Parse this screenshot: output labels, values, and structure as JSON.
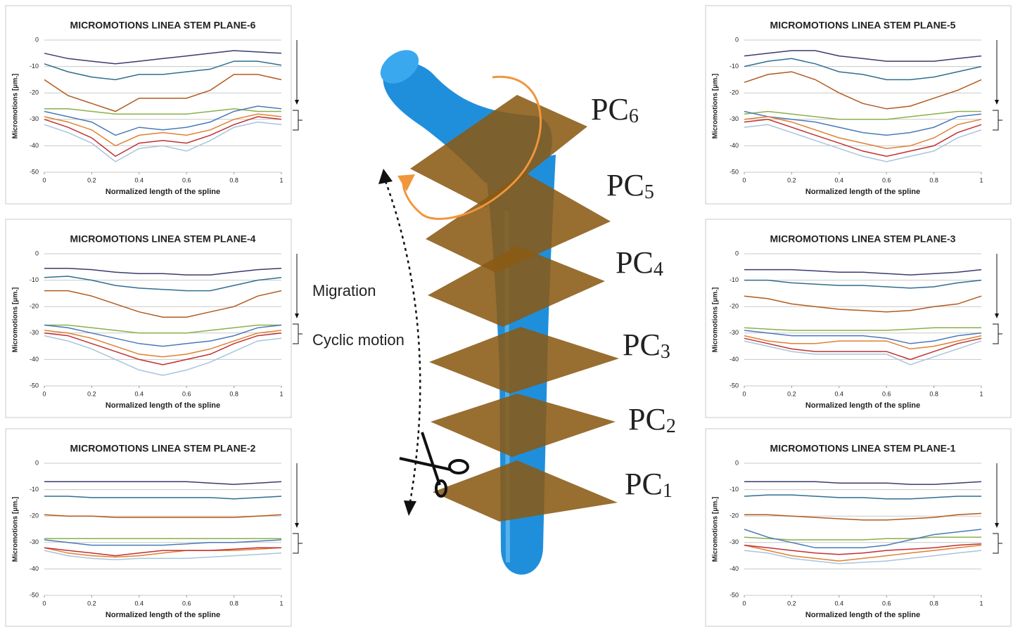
{
  "chart_data": [
    {
      "type": "line",
      "title": "MICROMOTIONS LINEA STEM PLANE-6",
      "x_label": "Normalized length of the spline",
      "y_label": "Micromotions [μm.]",
      "xlim": [
        0,
        1
      ],
      "ylim": [
        -50,
        0
      ],
      "xticks": [
        0,
        0.2,
        0.4,
        0.6,
        0.8,
        1
      ],
      "yticks": [
        -50,
        -40,
        -30,
        -20,
        -10,
        0
      ],
      "grid": true,
      "x": [
        0,
        0.1,
        0.2,
        0.3,
        0.4,
        0.5,
        0.6,
        0.7,
        0.8,
        0.9,
        1
      ],
      "series": [
        {
          "color": "#3b3b6b",
          "values": [
            -5,
            -7,
            -8,
            -9,
            -8,
            -7,
            -6,
            -5,
            -4,
            -4.5,
            -5
          ]
        },
        {
          "color": "#2e6e8e",
          "values": [
            -9,
            -12,
            -14,
            -15,
            -13,
            -13,
            -12,
            -11,
            -8,
            -8,
            -9.5
          ]
        },
        {
          "color": "#b05a1e",
          "values": [
            -15,
            -21,
            -24,
            -27,
            -22,
            -22,
            -22,
            -19,
            -13,
            -13,
            -15
          ]
        },
        {
          "color": "#8ab04a",
          "values": [
            -26,
            -26,
            -27,
            -28,
            -28,
            -28,
            -28,
            -27,
            -26,
            -27,
            -27
          ]
        },
        {
          "color": "#4a7ab8",
          "values": [
            -27,
            -29,
            -31,
            -36,
            -33,
            -34,
            -33,
            -31,
            -27,
            -25,
            -26
          ]
        },
        {
          "color": "#e08030",
          "values": [
            -29,
            -31,
            -34,
            -40,
            -36,
            -35,
            -36,
            -34,
            -30,
            -28,
            -29
          ]
        },
        {
          "color": "#c03030",
          "values": [
            -30,
            -33,
            -37,
            -44,
            -39,
            -38,
            -39,
            -36,
            -32,
            -29,
            -30
          ]
        },
        {
          "color": "#a8c4dc",
          "values": [
            -32,
            -35,
            -39,
            -46,
            -41,
            -40,
            -42,
            -38,
            -33,
            -31,
            -32
          ]
        }
      ]
    },
    {
      "type": "line",
      "title": "MICROMOTIONS LINEA STEM PLANE-5",
      "x_label": "Normalized length of the spline",
      "y_label": "Micromotions [μm.]",
      "xlim": [
        0,
        1
      ],
      "ylim": [
        -50,
        0
      ],
      "xticks": [
        0,
        0.2,
        0.4,
        0.6,
        0.8,
        1
      ],
      "yticks": [
        -50,
        -40,
        -30,
        -20,
        -10,
        0
      ],
      "grid": true,
      "x": [
        0,
        0.1,
        0.2,
        0.3,
        0.4,
        0.5,
        0.6,
        0.7,
        0.8,
        0.9,
        1
      ],
      "series": [
        {
          "color": "#3b3b6b",
          "values": [
            -6,
            -5,
            -4,
            -4,
            -6,
            -7,
            -8,
            -8,
            -8,
            -7,
            -6
          ]
        },
        {
          "color": "#2e6e8e",
          "values": [
            -10,
            -8,
            -7,
            -9,
            -12,
            -13,
            -15,
            -15,
            -14,
            -12,
            -10
          ]
        },
        {
          "color": "#b05a1e",
          "values": [
            -16,
            -13,
            -12,
            -15,
            -20,
            -24,
            -26,
            -25,
            -22,
            -19,
            -15
          ]
        },
        {
          "color": "#8ab04a",
          "values": [
            -28,
            -27,
            -28,
            -29,
            -30,
            -30,
            -30,
            -29,
            -28,
            -27,
            -27
          ]
        },
        {
          "color": "#4a7ab8",
          "values": [
            -27,
            -29,
            -30,
            -31,
            -33,
            -35,
            -36,
            -35,
            -33,
            -29,
            -28
          ]
        },
        {
          "color": "#e08030",
          "values": [
            -30,
            -29,
            -31,
            -34,
            -37,
            -39,
            -41,
            -40,
            -37,
            -32,
            -30
          ]
        },
        {
          "color": "#c03030",
          "values": [
            -31,
            -30,
            -33,
            -36,
            -39,
            -42,
            -44,
            -42,
            -40,
            -35,
            -32
          ]
        },
        {
          "color": "#a8c4dc",
          "values": [
            -33,
            -32,
            -35,
            -38,
            -41,
            -44,
            -46,
            -44,
            -42,
            -37,
            -34
          ]
        }
      ]
    },
    {
      "type": "line",
      "title": "MICROMOTIONS LINEA STEM PLANE-4",
      "x_label": "Normalized length of the spline",
      "y_label": "Micromotions [μm.]",
      "xlim": [
        0,
        1
      ],
      "ylim": [
        -50,
        0
      ],
      "xticks": [
        0,
        0.2,
        0.4,
        0.6,
        0.8,
        1
      ],
      "yticks": [
        -50,
        -40,
        -30,
        -20,
        -10,
        0
      ],
      "grid": true,
      "x": [
        0,
        0.1,
        0.2,
        0.3,
        0.4,
        0.5,
        0.6,
        0.7,
        0.8,
        0.9,
        1
      ],
      "series": [
        {
          "color": "#3b3b6b",
          "values": [
            -5.5,
            -5.5,
            -6,
            -7,
            -7.5,
            -7.5,
            -8,
            -8,
            -7,
            -6,
            -5.5
          ]
        },
        {
          "color": "#2e6e8e",
          "values": [
            -9,
            -8.5,
            -10,
            -12,
            -13,
            -13.5,
            -14,
            -14,
            -12,
            -10,
            -9
          ]
        },
        {
          "color": "#b05a1e",
          "values": [
            -14,
            -14,
            -16,
            -19,
            -22,
            -24,
            -24,
            -22,
            -20,
            -16,
            -14
          ]
        },
        {
          "color": "#8ab04a",
          "values": [
            -27,
            -27,
            -28,
            -29,
            -30,
            -30,
            -30,
            -29,
            -28,
            -27,
            -27
          ]
        },
        {
          "color": "#4a7ab8",
          "values": [
            -27,
            -28,
            -30,
            -32,
            -34,
            -35,
            -34,
            -33,
            -31,
            -28,
            -27
          ]
        },
        {
          "color": "#e08030",
          "values": [
            -29,
            -30,
            -32,
            -35,
            -38,
            -39,
            -38,
            -36,
            -33,
            -30,
            -29
          ]
        },
        {
          "color": "#c03030",
          "values": [
            -30,
            -31,
            -34,
            -37,
            -40,
            -42,
            -40,
            -38,
            -34,
            -31,
            -30
          ]
        },
        {
          "color": "#a8c4dc",
          "values": [
            -31,
            -33,
            -36,
            -40,
            -44,
            -46,
            -44,
            -41,
            -37,
            -33,
            -32
          ]
        }
      ]
    },
    {
      "type": "line",
      "title": "MICROMOTIONS LINEA STEM PLANE-3",
      "x_label": "Normalized length of the spline",
      "y_label": "Micromotions [μm.]",
      "xlim": [
        0,
        1
      ],
      "ylim": [
        -50,
        0
      ],
      "xticks": [
        0,
        0.2,
        0.4,
        0.6,
        0.8,
        1
      ],
      "yticks": [
        -50,
        -40,
        -30,
        -20,
        -10,
        0
      ],
      "grid": true,
      "x": [
        0,
        0.1,
        0.2,
        0.3,
        0.4,
        0.5,
        0.6,
        0.7,
        0.8,
        0.9,
        1
      ],
      "series": [
        {
          "color": "#3b3b6b",
          "values": [
            -6,
            -6,
            -6,
            -6.5,
            -7,
            -7,
            -7.5,
            -8,
            -7.5,
            -7,
            -6
          ]
        },
        {
          "color": "#2e6e8e",
          "values": [
            -10,
            -10,
            -11,
            -11.5,
            -12,
            -12,
            -12.5,
            -13,
            -12.5,
            -11,
            -10
          ]
        },
        {
          "color": "#b05a1e",
          "values": [
            -16,
            -17,
            -19,
            -20,
            -21,
            -21.5,
            -22,
            -21.5,
            -20,
            -19,
            -16
          ]
        },
        {
          "color": "#8ab04a",
          "values": [
            -28,
            -28.5,
            -29,
            -29,
            -29,
            -29,
            -29,
            -28.5,
            -28,
            -28,
            -28
          ]
        },
        {
          "color": "#4a7ab8",
          "values": [
            -29,
            -30,
            -31,
            -31,
            -31,
            -31,
            -32,
            -34,
            -33,
            -31,
            -30
          ]
        },
        {
          "color": "#e08030",
          "values": [
            -31,
            -33,
            -34,
            -34,
            -33,
            -33,
            -33,
            -36,
            -35,
            -33,
            -31
          ]
        },
        {
          "color": "#c03030",
          "values": [
            -32,
            -34,
            -36,
            -37,
            -37,
            -37,
            -37,
            -40,
            -37,
            -34,
            -32
          ]
        },
        {
          "color": "#a8c4dc",
          "values": [
            -33,
            -35,
            -37,
            -38,
            -38,
            -38,
            -38,
            -42,
            -39,
            -36,
            -33
          ]
        }
      ]
    },
    {
      "type": "line",
      "title": "MICROMOTIONS LINEA STEM PLANE-2",
      "x_label": "Normalized length of the spline",
      "y_label": "Micromotions [μm.]",
      "xlim": [
        0,
        1
      ],
      "ylim": [
        -50,
        0
      ],
      "xticks": [
        0,
        0.2,
        0.4,
        0.6,
        0.8,
        1
      ],
      "yticks": [
        -50,
        -40,
        -30,
        -20,
        -10,
        0
      ],
      "grid": true,
      "x": [
        0,
        0.1,
        0.2,
        0.3,
        0.4,
        0.5,
        0.6,
        0.7,
        0.8,
        0.9,
        1
      ],
      "series": [
        {
          "color": "#3b3b6b",
          "values": [
            -7,
            -7,
            -7,
            -7,
            -7,
            -7,
            -7,
            -7.5,
            -8,
            -7.5,
            -7
          ]
        },
        {
          "color": "#2e6e8e",
          "values": [
            -12.5,
            -12.5,
            -13,
            -13,
            -13,
            -13,
            -13,
            -13,
            -13.5,
            -13,
            -12.5
          ]
        },
        {
          "color": "#b05a1e",
          "values": [
            -19.5,
            -20,
            -20,
            -20.5,
            -20.5,
            -20.5,
            -20.5,
            -20.5,
            -20.5,
            -20,
            -19.5
          ]
        },
        {
          "color": "#8ab04a",
          "values": [
            -28.5,
            -28.5,
            -28.5,
            -28.5,
            -28.5,
            -28.5,
            -28.5,
            -28.5,
            -28.5,
            -28.5,
            -28.5
          ]
        },
        {
          "color": "#4a7ab8",
          "values": [
            -29,
            -30,
            -31,
            -31,
            -31,
            -31,
            -30.5,
            -30,
            -30,
            -29.5,
            -29
          ]
        },
        {
          "color": "#e08030",
          "values": [
            -32,
            -34,
            -35,
            -35.5,
            -35,
            -34,
            -33,
            -33,
            -33,
            -32.5,
            -32
          ]
        },
        {
          "color": "#c03030",
          "values": [
            -32,
            -33,
            -34,
            -35,
            -34,
            -33,
            -33,
            -33,
            -32.5,
            -32,
            -32
          ]
        },
        {
          "color": "#a8c4dc",
          "values": [
            -33,
            -35,
            -36,
            -36.5,
            -36,
            -36,
            -36,
            -35.5,
            -35,
            -34.5,
            -34
          ]
        }
      ]
    },
    {
      "type": "line",
      "title": "MICROMOTIONS LINEA STEM PLANE-1",
      "x_label": "Normalized length of the spline",
      "y_label": "Micromotions [μm.]",
      "xlim": [
        0,
        1
      ],
      "ylim": [
        -50,
        0
      ],
      "xticks": [
        0,
        0.2,
        0.4,
        0.6,
        0.8,
        1
      ],
      "yticks": [
        -50,
        -40,
        -30,
        -20,
        -10,
        0
      ],
      "grid": true,
      "x": [
        0,
        0.1,
        0.2,
        0.3,
        0.4,
        0.5,
        0.6,
        0.7,
        0.8,
        0.9,
        1
      ],
      "series": [
        {
          "color": "#3b3b6b",
          "values": [
            -7,
            -7,
            -7,
            -7,
            -7.5,
            -7.5,
            -7.5,
            -8,
            -8,
            -7.5,
            -7
          ]
        },
        {
          "color": "#2e6e8e",
          "values": [
            -12.5,
            -12,
            -12,
            -12.5,
            -13,
            -13,
            -13.5,
            -13.5,
            -13,
            -12.5,
            -12.5
          ]
        },
        {
          "color": "#b05a1e",
          "values": [
            -19.5,
            -19.5,
            -20,
            -20.5,
            -21,
            -21.5,
            -21.5,
            -21,
            -20.5,
            -19.5,
            -19
          ]
        },
        {
          "color": "#8ab04a",
          "values": [
            -28,
            -28.5,
            -29,
            -29,
            -29,
            -29,
            -28.5,
            -28.5,
            -28,
            -28,
            -28
          ]
        },
        {
          "color": "#4a7ab8",
          "values": [
            -25,
            -28,
            -30,
            -32,
            -32,
            -32,
            -31,
            -29,
            -27,
            -26,
            -25
          ]
        },
        {
          "color": "#e08030",
          "values": [
            -31,
            -33,
            -35,
            -36,
            -37,
            -36,
            -35,
            -34,
            -33,
            -32,
            -31
          ]
        },
        {
          "color": "#c03030",
          "values": [
            -31,
            -32,
            -33,
            -34,
            -34.5,
            -34,
            -33,
            -32.5,
            -32,
            -31,
            -30.5
          ]
        },
        {
          "color": "#a8c4dc",
          "values": [
            -33,
            -34,
            -36,
            -37,
            -38,
            -37.5,
            -37,
            -36,
            -35,
            -34,
            -33
          ]
        }
      ]
    }
  ],
  "illustration": {
    "plane_labels": [
      {
        "main": "PC",
        "sub": "6"
      },
      {
        "main": "PC",
        "sub": "5"
      },
      {
        "main": "PC",
        "sub": "4"
      },
      {
        "main": "PC",
        "sub": "3"
      },
      {
        "main": "PC",
        "sub": "2"
      },
      {
        "main": "PC",
        "sub": "1"
      }
    ],
    "migration": "Migration",
    "cyclic_motion": "Cyclic motion"
  }
}
